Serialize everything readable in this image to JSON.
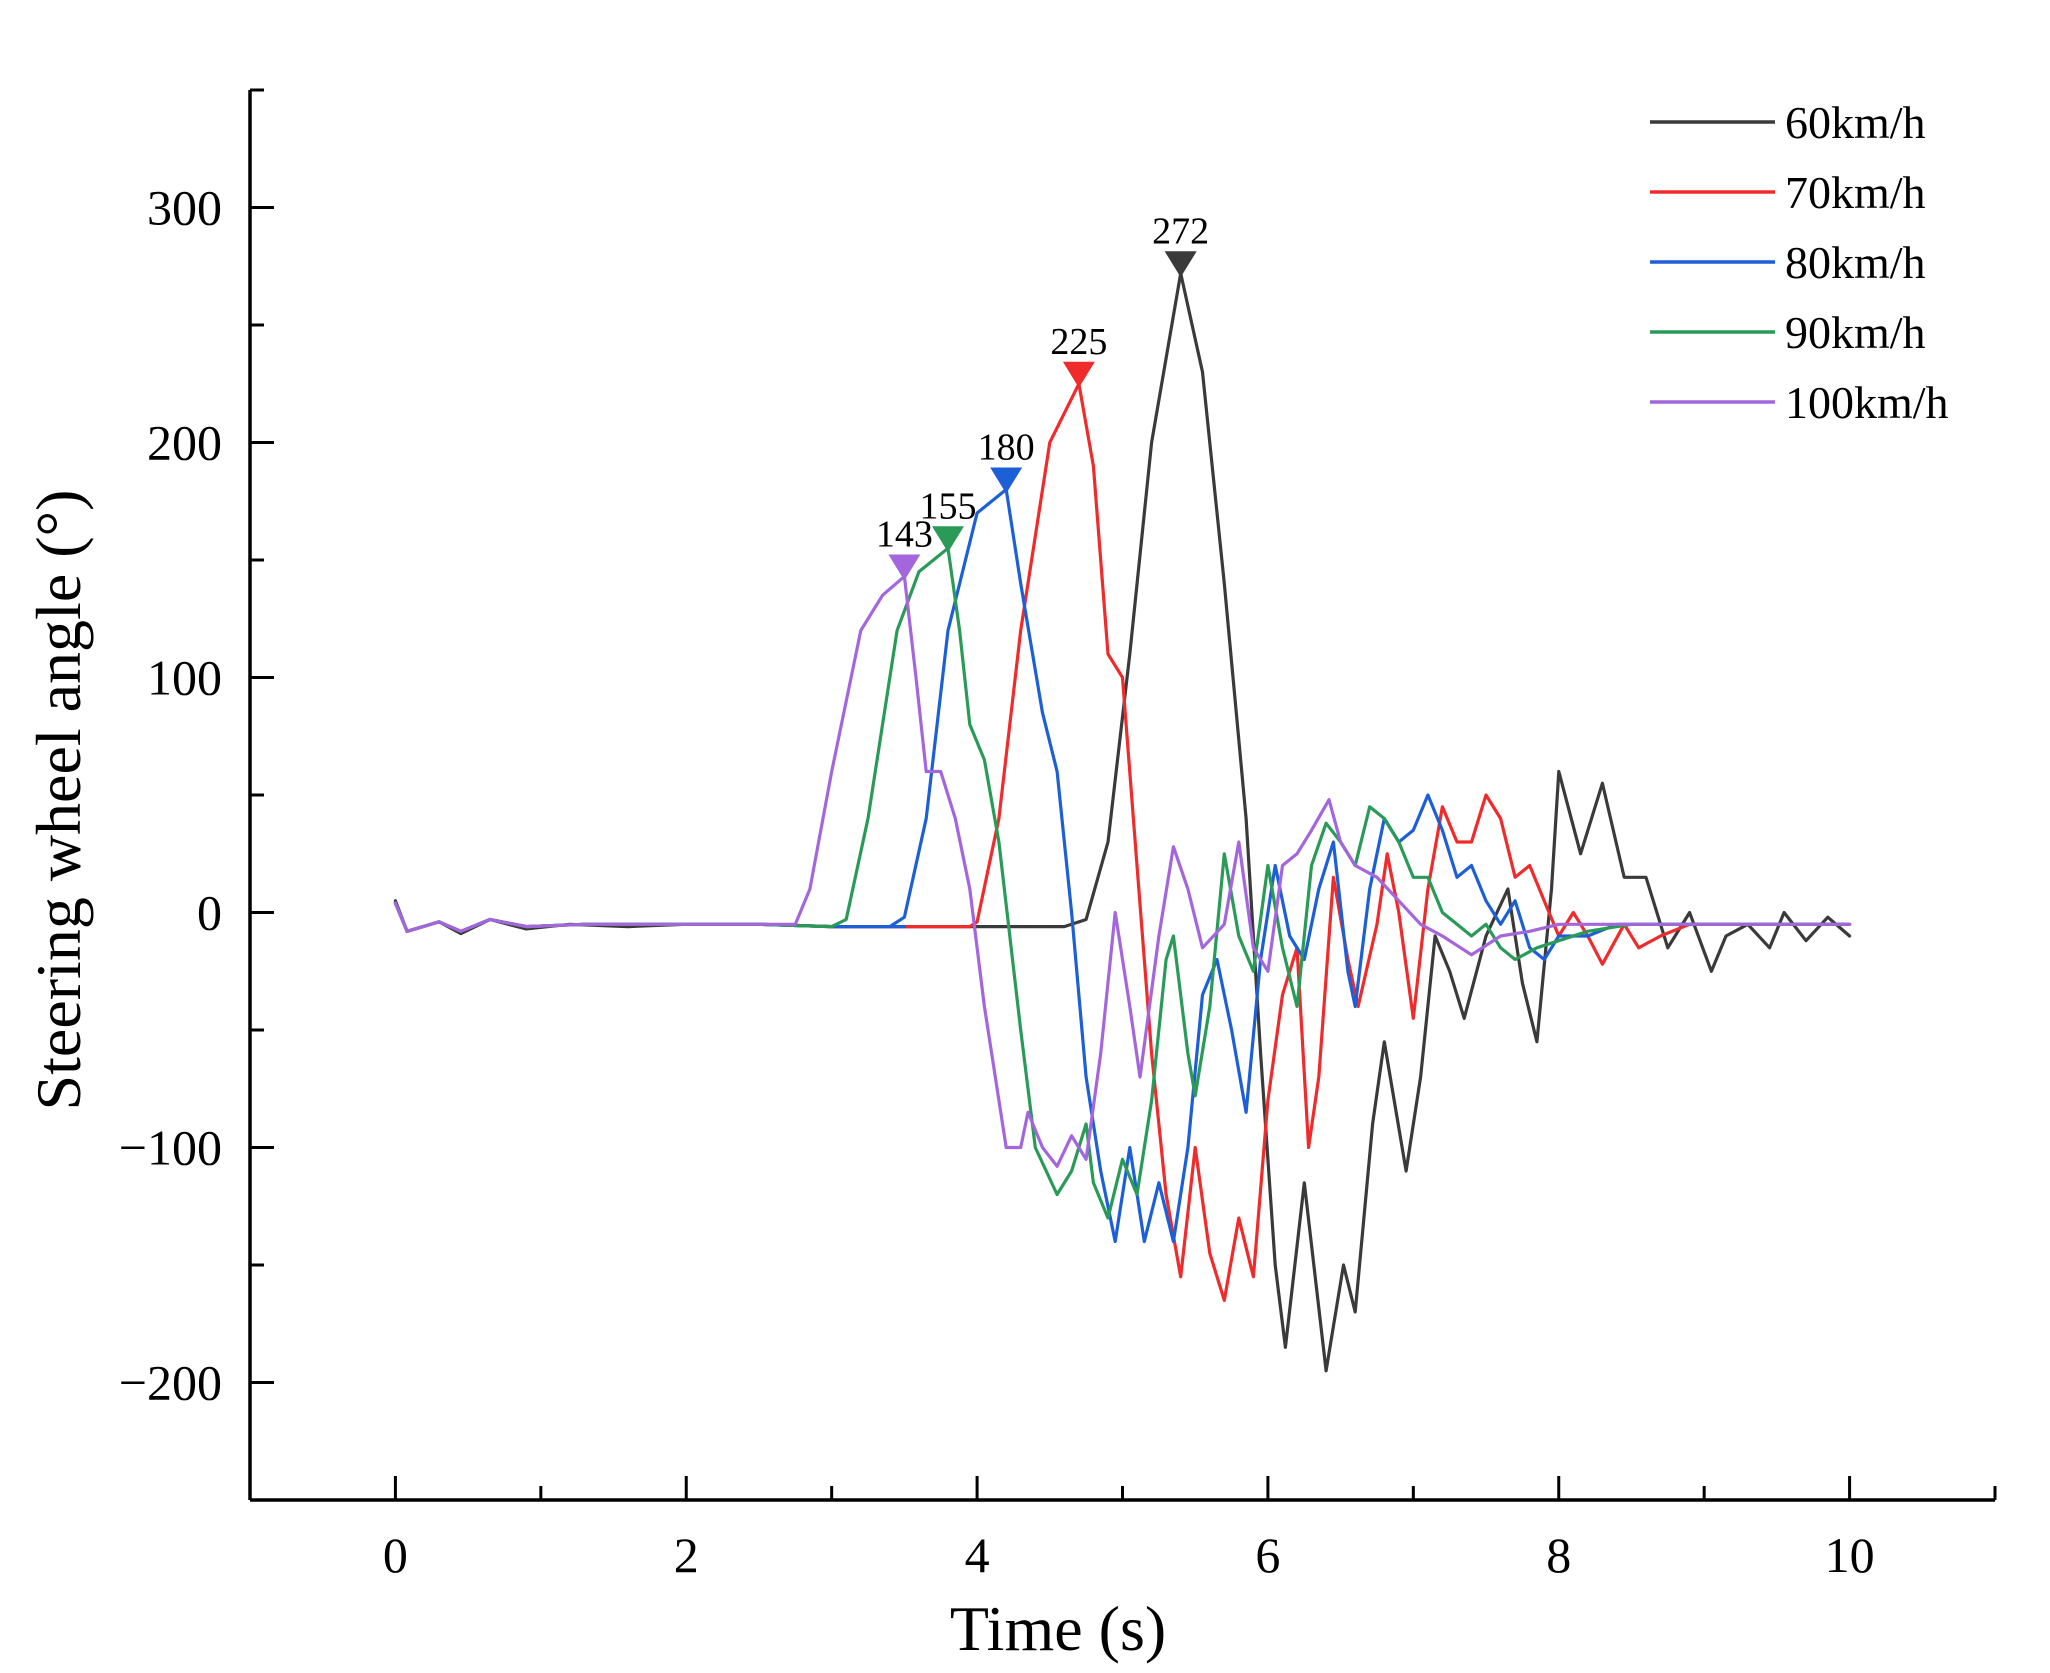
{
  "chart_data": {
    "type": "line",
    "title": "",
    "xlabel": "Time (s)",
    "ylabel": "Steering wheel angle (°)",
    "xlim": [
      -1,
      11
    ],
    "ylim": [
      -250,
      350
    ],
    "xticks": [
      0,
      2,
      4,
      6,
      8,
      10
    ],
    "xtick_labels": [
      "0",
      "2",
      "4",
      "6",
      "8",
      "10"
    ],
    "yticks": [
      -200,
      -100,
      0,
      100,
      200,
      300
    ],
    "ytick_labels": [
      "−200",
      "−100",
      "0",
      "100",
      "200",
      "300"
    ],
    "legend_position": "top-right",
    "series": [
      {
        "name": "60km/h",
        "color": "#3a3a3a",
        "peak": {
          "x": 5.4,
          "y": 272,
          "label": "272"
        },
        "points": [
          [
            0,
            5
          ],
          [
            0.08,
            -8
          ],
          [
            0.3,
            -4
          ],
          [
            0.45,
            -9
          ],
          [
            0.65,
            -3
          ],
          [
            0.9,
            -7
          ],
          [
            1.2,
            -5
          ],
          [
            1.6,
            -6
          ],
          [
            2.0,
            -5
          ],
          [
            2.5,
            -5
          ],
          [
            3.0,
            -6
          ],
          [
            3.5,
            -6
          ],
          [
            4.0,
            -6
          ],
          [
            4.6,
            -6
          ],
          [
            4.75,
            -3
          ],
          [
            4.9,
            30
          ],
          [
            5.05,
            110
          ],
          [
            5.2,
            200
          ],
          [
            5.4,
            272
          ],
          [
            5.55,
            230
          ],
          [
            5.7,
            140
          ],
          [
            5.85,
            40
          ],
          [
            5.95,
            -60
          ],
          [
            6.05,
            -150
          ],
          [
            6.12,
            -185
          ],
          [
            6.25,
            -115
          ],
          [
            6.4,
            -195
          ],
          [
            6.52,
            -150
          ],
          [
            6.6,
            -170
          ],
          [
            6.72,
            -90
          ],
          [
            6.8,
            -55
          ],
          [
            6.95,
            -110
          ],
          [
            7.05,
            -70
          ],
          [
            7.15,
            -10
          ],
          [
            7.25,
            -25
          ],
          [
            7.35,
            -45
          ],
          [
            7.5,
            -10
          ],
          [
            7.65,
            10
          ],
          [
            7.75,
            -30
          ],
          [
            7.85,
            -55
          ],
          [
            7.95,
            10
          ],
          [
            8.0,
            60
          ],
          [
            8.15,
            25
          ],
          [
            8.3,
            55
          ],
          [
            8.45,
            15
          ],
          [
            8.6,
            15
          ],
          [
            8.75,
            -15
          ],
          [
            8.9,
            0
          ],
          [
            9.05,
            -25
          ],
          [
            9.15,
            -10
          ],
          [
            9.3,
            -5
          ],
          [
            9.45,
            -15
          ],
          [
            9.55,
            0
          ],
          [
            9.7,
            -12
          ],
          [
            9.85,
            -2
          ],
          [
            10.0,
            -10
          ]
        ]
      },
      {
        "name": "70km/h",
        "color": "#ef2b2b",
        "peak": {
          "x": 4.7,
          "y": 225,
          "label": "225"
        },
        "points": [
          [
            0,
            4
          ],
          [
            0.08,
            -8
          ],
          [
            0.3,
            -4
          ],
          [
            0.45,
            -8
          ],
          [
            0.65,
            -3
          ],
          [
            0.9,
            -6
          ],
          [
            1.3,
            -5
          ],
          [
            1.8,
            -5
          ],
          [
            2.5,
            -5
          ],
          [
            3.0,
            -6
          ],
          [
            3.5,
            -6
          ],
          [
            3.95,
            -6
          ],
          [
            4.0,
            -4
          ],
          [
            4.15,
            40
          ],
          [
            4.3,
            120
          ],
          [
            4.5,
            200
          ],
          [
            4.7,
            225
          ],
          [
            4.8,
            190
          ],
          [
            4.9,
            110
          ],
          [
            5.0,
            100
          ],
          [
            5.1,
            20
          ],
          [
            5.2,
            -60
          ],
          [
            5.3,
            -120
          ],
          [
            5.4,
            -155
          ],
          [
            5.5,
            -100
          ],
          [
            5.6,
            -145
          ],
          [
            5.7,
            -165
          ],
          [
            5.8,
            -130
          ],
          [
            5.9,
            -155
          ],
          [
            6.0,
            -80
          ],
          [
            6.1,
            -35
          ],
          [
            6.2,
            -15
          ],
          [
            6.28,
            -100
          ],
          [
            6.35,
            -70
          ],
          [
            6.45,
            15
          ],
          [
            6.55,
            -20
          ],
          [
            6.62,
            -40
          ],
          [
            6.75,
            -5
          ],
          [
            6.82,
            25
          ],
          [
            6.9,
            0
          ],
          [
            7.0,
            -45
          ],
          [
            7.1,
            10
          ],
          [
            7.2,
            45
          ],
          [
            7.3,
            30
          ],
          [
            7.4,
            30
          ],
          [
            7.5,
            50
          ],
          [
            7.6,
            40
          ],
          [
            7.7,
            15
          ],
          [
            7.8,
            20
          ],
          [
            7.9,
            5
          ],
          [
            8.0,
            -10
          ],
          [
            8.1,
            0
          ],
          [
            8.2,
            -10
          ],
          [
            8.3,
            -22
          ],
          [
            8.45,
            -5
          ],
          [
            8.55,
            -15
          ],
          [
            8.7,
            -10
          ],
          [
            8.9,
            -5
          ],
          [
            9.2,
            -5
          ],
          [
            9.6,
            -5
          ],
          [
            10.0,
            -5
          ]
        ]
      },
      {
        "name": "80km/h",
        "color": "#1c5fd6",
        "peak": {
          "x": 4.2,
          "y": 180,
          "label": "180"
        },
        "points": [
          [
            0,
            4
          ],
          [
            0.08,
            -8
          ],
          [
            0.3,
            -4
          ],
          [
            0.45,
            -8
          ],
          [
            0.65,
            -3
          ],
          [
            0.9,
            -6
          ],
          [
            1.3,
            -5
          ],
          [
            1.8,
            -5
          ],
          [
            2.5,
            -5
          ],
          [
            3.0,
            -6
          ],
          [
            3.5,
            -6
          ],
          [
            3.4,
            -6
          ],
          [
            3.5,
            -2
          ],
          [
            3.65,
            40
          ],
          [
            3.8,
            120
          ],
          [
            4.0,
            170
          ],
          [
            4.2,
            180
          ],
          [
            4.3,
            140
          ],
          [
            4.45,
            85
          ],
          [
            4.55,
            60
          ],
          [
            4.65,
            0
          ],
          [
            4.75,
            -70
          ],
          [
            4.85,
            -110
          ],
          [
            4.95,
            -140
          ],
          [
            5.05,
            -100
          ],
          [
            5.15,
            -140
          ],
          [
            5.25,
            -115
          ],
          [
            5.35,
            -140
          ],
          [
            5.45,
            -100
          ],
          [
            5.55,
            -35
          ],
          [
            5.65,
            -20
          ],
          [
            5.75,
            -50
          ],
          [
            5.85,
            -85
          ],
          [
            5.95,
            -20
          ],
          [
            6.05,
            20
          ],
          [
            6.15,
            -10
          ],
          [
            6.25,
            -20
          ],
          [
            6.35,
            10
          ],
          [
            6.45,
            30
          ],
          [
            6.55,
            -25
          ],
          [
            6.6,
            -40
          ],
          [
            6.7,
            10
          ],
          [
            6.8,
            40
          ],
          [
            6.9,
            30
          ],
          [
            7.0,
            35
          ],
          [
            7.1,
            50
          ],
          [
            7.2,
            35
          ],
          [
            7.3,
            15
          ],
          [
            7.4,
            20
          ],
          [
            7.5,
            5
          ],
          [
            7.6,
            -5
          ],
          [
            7.7,
            5
          ],
          [
            7.8,
            -15
          ],
          [
            7.9,
            -20
          ],
          [
            8.0,
            -10
          ],
          [
            8.2,
            -10
          ],
          [
            8.4,
            -5
          ],
          [
            8.7,
            -5
          ],
          [
            9.0,
            -5
          ],
          [
            9.5,
            -5
          ],
          [
            10.0,
            -5
          ]
        ]
      },
      {
        "name": "90km/h",
        "color": "#2a9a58",
        "peak": {
          "x": 3.8,
          "y": 155,
          "label": "155"
        },
        "points": [
          [
            0,
            4
          ],
          [
            0.08,
            -8
          ],
          [
            0.3,
            -4
          ],
          [
            0.45,
            -8
          ],
          [
            0.65,
            -3
          ],
          [
            0.9,
            -6
          ],
          [
            1.3,
            -5
          ],
          [
            1.8,
            -5
          ],
          [
            2.5,
            -5
          ],
          [
            3.0,
            -6
          ],
          [
            3.1,
            -3
          ],
          [
            3.25,
            40
          ],
          [
            3.45,
            120
          ],
          [
            3.6,
            145
          ],
          [
            3.8,
            155
          ],
          [
            3.88,
            120
          ],
          [
            3.95,
            80
          ],
          [
            4.05,
            65
          ],
          [
            4.15,
            30
          ],
          [
            4.3,
            -50
          ],
          [
            4.4,
            -100
          ],
          [
            4.55,
            -120
          ],
          [
            4.65,
            -110
          ],
          [
            4.75,
            -90
          ],
          [
            4.8,
            -115
          ],
          [
            4.9,
            -130
          ],
          [
            5.0,
            -105
          ],
          [
            5.1,
            -120
          ],
          [
            5.2,
            -80
          ],
          [
            5.3,
            -20
          ],
          [
            5.35,
            -10
          ],
          [
            5.45,
            -60
          ],
          [
            5.5,
            -78
          ],
          [
            5.6,
            -40
          ],
          [
            5.7,
            25
          ],
          [
            5.8,
            -10
          ],
          [
            5.9,
            -25
          ],
          [
            6.0,
            20
          ],
          [
            6.1,
            -15
          ],
          [
            6.2,
            -40
          ],
          [
            6.3,
            20
          ],
          [
            6.4,
            38
          ],
          [
            6.5,
            30
          ],
          [
            6.6,
            20
          ],
          [
            6.7,
            45
          ],
          [
            6.8,
            40
          ],
          [
            6.9,
            30
          ],
          [
            7.0,
            15
          ],
          [
            7.1,
            15
          ],
          [
            7.2,
            0
          ],
          [
            7.3,
            -5
          ],
          [
            7.4,
            -10
          ],
          [
            7.5,
            -5
          ],
          [
            7.6,
            -15
          ],
          [
            7.7,
            -20
          ],
          [
            7.85,
            -15
          ],
          [
            8.0,
            -12
          ],
          [
            8.2,
            -8
          ],
          [
            8.5,
            -5
          ],
          [
            9.0,
            -5
          ],
          [
            9.5,
            -5
          ],
          [
            10.0,
            -5
          ]
        ]
      },
      {
        "name": "100km/h",
        "color": "#a366dd",
        "peak": {
          "x": 3.5,
          "y": 143,
          "label": "143"
        },
        "points": [
          [
            0,
            4
          ],
          [
            0.08,
            -8
          ],
          [
            0.3,
            -4
          ],
          [
            0.45,
            -8
          ],
          [
            0.65,
            -3
          ],
          [
            0.9,
            -6
          ],
          [
            1.3,
            -5
          ],
          [
            1.8,
            -5
          ],
          [
            2.5,
            -5
          ],
          [
            2.75,
            -5
          ],
          [
            2.85,
            10
          ],
          [
            3.0,
            60
          ],
          [
            3.2,
            120
          ],
          [
            3.35,
            135
          ],
          [
            3.5,
            143
          ],
          [
            3.58,
            100
          ],
          [
            3.65,
            60
          ],
          [
            3.75,
            60
          ],
          [
            3.85,
            40
          ],
          [
            3.95,
            10
          ],
          [
            4.05,
            -40
          ],
          [
            4.2,
            -100
          ],
          [
            4.3,
            -100
          ],
          [
            4.35,
            -85
          ],
          [
            4.45,
            -100
          ],
          [
            4.55,
            -108
          ],
          [
            4.65,
            -95
          ],
          [
            4.75,
            -105
          ],
          [
            4.85,
            -60
          ],
          [
            4.95,
            0
          ],
          [
            5.05,
            -40
          ],
          [
            5.12,
            -70
          ],
          [
            5.25,
            -10
          ],
          [
            5.35,
            28
          ],
          [
            5.45,
            10
          ],
          [
            5.55,
            -15
          ],
          [
            5.7,
            -5
          ],
          [
            5.8,
            30
          ],
          [
            5.9,
            -15
          ],
          [
            6.0,
            -25
          ],
          [
            6.1,
            20
          ],
          [
            6.2,
            25
          ],
          [
            6.3,
            35
          ],
          [
            6.42,
            48
          ],
          [
            6.5,
            30
          ],
          [
            6.6,
            20
          ],
          [
            6.75,
            15
          ],
          [
            6.9,
            5
          ],
          [
            7.05,
            -5
          ],
          [
            7.2,
            -10
          ],
          [
            7.4,
            -18
          ],
          [
            7.6,
            -10
          ],
          [
            7.8,
            -8
          ],
          [
            8.0,
            -5
          ],
          [
            8.5,
            -5
          ],
          [
            9.0,
            -5
          ],
          [
            9.5,
            -5
          ],
          [
            10.0,
            -5
          ]
        ]
      }
    ]
  }
}
